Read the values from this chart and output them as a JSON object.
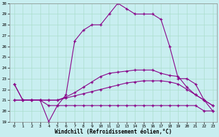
{
  "xlabel": "Windchill (Refroidissement éolien,°C)",
  "xlim": [
    -0.5,
    23.5
  ],
  "ylim": [
    19,
    30
  ],
  "yticks": [
    19,
    20,
    21,
    22,
    23,
    24,
    25,
    26,
    27,
    28,
    29,
    30
  ],
  "xticks": [
    0,
    1,
    2,
    3,
    4,
    5,
    6,
    7,
    8,
    9,
    10,
    11,
    12,
    13,
    14,
    15,
    16,
    17,
    18,
    19,
    20,
    21,
    22,
    23
  ],
  "line_color": "#880088",
  "bg_color": "#C8EEF0",
  "grid_color": "#AADDCC",
  "curve_flat_x": [
    0,
    1,
    2,
    3,
    4,
    5,
    6,
    7,
    8,
    9,
    10,
    11,
    12,
    13,
    14,
    15,
    16,
    17,
    18,
    19,
    20,
    21,
    22,
    23
  ],
  "curve_flat_y": [
    21.0,
    21.0,
    21.0,
    21.0,
    20.5,
    20.5,
    20.5,
    20.5,
    20.5,
    20.5,
    20.5,
    20.5,
    20.5,
    20.5,
    20.5,
    20.5,
    20.5,
    20.5,
    20.5,
    20.5,
    20.5,
    20.5,
    20.0,
    20.0
  ],
  "curve_mid1_x": [
    0,
    1,
    2,
    3,
    4,
    5,
    6,
    7,
    8,
    9,
    10,
    11,
    12,
    13,
    14,
    15,
    16,
    17,
    18,
    19,
    20,
    21,
    22,
    23
  ],
  "curve_mid1_y": [
    21.0,
    21.0,
    21.0,
    21.0,
    21.0,
    21.0,
    21.2,
    21.4,
    21.6,
    21.8,
    22.0,
    22.2,
    22.4,
    22.6,
    22.7,
    22.8,
    22.8,
    22.8,
    22.7,
    22.5,
    22.0,
    21.5,
    21.0,
    20.5
  ],
  "curve_mid2_x": [
    0,
    1,
    2,
    3,
    4,
    5,
    6,
    7,
    8,
    9,
    10,
    11,
    12,
    13,
    14,
    15,
    16,
    17,
    18,
    19,
    20,
    21,
    22,
    23
  ],
  "curve_mid2_y": [
    22.5,
    21.0,
    21.0,
    21.0,
    21.0,
    21.0,
    21.3,
    21.7,
    22.2,
    22.7,
    23.2,
    23.5,
    23.6,
    23.7,
    23.8,
    23.8,
    23.8,
    23.5,
    23.3,
    23.2,
    22.2,
    21.5,
    21.0,
    20.5
  ],
  "curve_top_x": [
    0,
    1,
    2,
    3,
    4,
    5,
    6,
    7,
    8,
    9,
    10,
    11,
    12,
    13,
    14,
    15,
    16,
    17,
    18,
    19,
    20,
    21,
    22,
    23
  ],
  "curve_top_y": [
    22.5,
    21.0,
    21.0,
    21.0,
    19.0,
    20.5,
    21.5,
    26.5,
    27.5,
    28.0,
    28.0,
    29.0,
    30.0,
    29.5,
    29.0,
    29.0,
    29.0,
    28.5,
    26.0,
    23.0,
    23.0,
    22.5,
    21.0,
    20.0
  ]
}
